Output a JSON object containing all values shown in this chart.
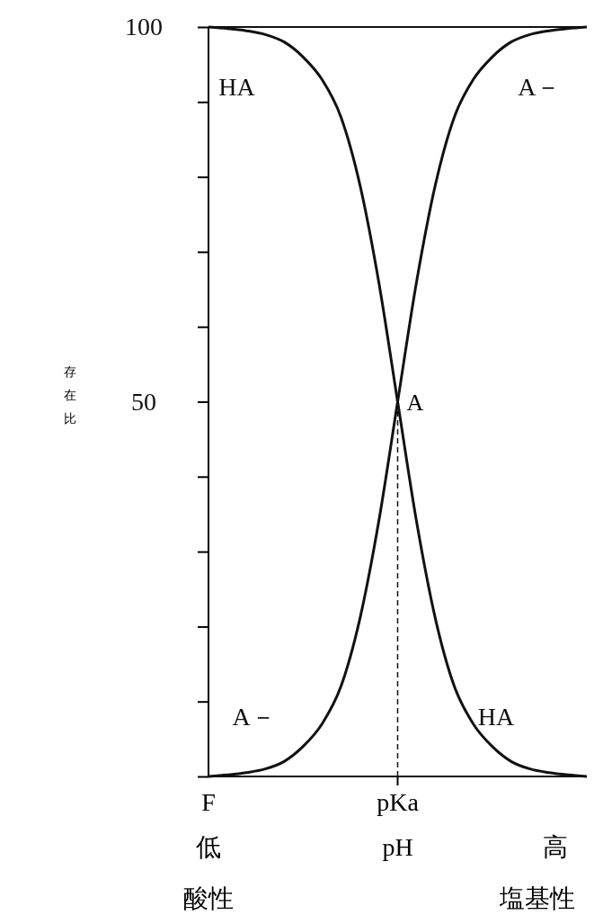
{
  "chart_data": {
    "type": "line",
    "ylabel": "存在比",
    "xlabel": "pH",
    "categories": [
      null,
      null,
      null,
      null,
      null,
      null,
      null,
      null,
      null,
      null,
      "pKa",
      null,
      null,
      null,
      null,
      null,
      null,
      null,
      null,
      null,
      null
    ],
    "series": [
      {
        "name": "HA",
        "color": "#111111",
        "values": [
          100,
          99.8,
          99.5,
          99,
          98,
          96,
          93,
          88,
          79,
          66,
          50,
          34,
          21,
          12,
          7,
          4,
          2,
          1,
          0.5,
          0.2,
          0
        ]
      },
      {
        "name": "A－",
        "color": "#111111",
        "values": [
          0,
          0.2,
          0.5,
          1,
          2,
          4,
          7,
          12,
          21,
          34,
          50,
          66,
          79,
          88,
          93,
          96,
          98,
          99,
          99.5,
          99.8,
          100
        ]
      }
    ],
    "ylim": [
      0,
      100
    ],
    "yticks": [
      {
        "value": 0,
        "label": null
      },
      {
        "value": 10,
        "label": null
      },
      {
        "value": 20,
        "label": null
      },
      {
        "value": 30,
        "label": null
      },
      {
        "value": 40,
        "label": null
      },
      50,
      {
        "value": 60,
        "label": null
      },
      {
        "value": 70,
        "label": null
      },
      {
        "value": 80,
        "label": null
      },
      {
        "value": 90,
        "label": null
      },
      100
    ],
    "ref_lines": [
      {
        "axis": "x",
        "value": "pKa",
        "line_style": "dashed",
        "color": "#111111"
      }
    ],
    "annotations": [
      {
        "text": "A",
        "x": "pKa",
        "y": 50
      },
      "F",
      "低",
      "高",
      "酸性",
      "塩基性"
    ],
    "grid": false,
    "legend": false,
    "marker": "none",
    "line_style": "solid"
  }
}
